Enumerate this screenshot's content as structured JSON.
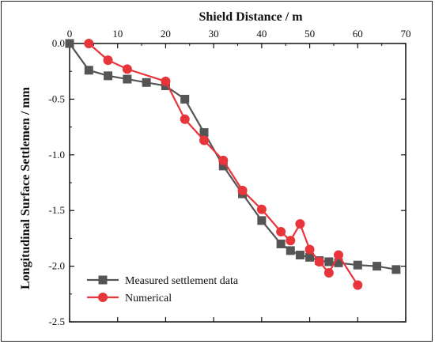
{
  "chart_data": {
    "type": "line",
    "xlabel": "Shield Distance / m",
    "ylabel": "Longitudinal Surface Settlemen / mm",
    "xlim": [
      0,
      70
    ],
    "ylim": [
      -2.5,
      0.0
    ],
    "xticks": [
      "0",
      "10",
      "20",
      "30",
      "40",
      "50",
      "60",
      "70"
    ],
    "xtick_values": [
      0,
      10,
      20,
      30,
      40,
      50,
      60,
      70
    ],
    "yticks": [
      "0.0",
      "-0.5",
      "-1.0",
      "-1.5",
      "-2.0",
      "-2.5"
    ],
    "ytick_values": [
      0.0,
      -0.5,
      -1.0,
      -1.5,
      -2.0,
      -2.5
    ],
    "x_axis_position": "top",
    "grid": false,
    "legend_position": "bottom-left",
    "series": [
      {
        "name": "Measured settlement data",
        "color": "#555555",
        "marker": "square",
        "x": [
          0,
          4,
          8,
          12,
          16,
          20,
          24,
          28,
          32,
          36,
          40,
          44,
          46,
          48,
          50,
          52,
          54,
          56,
          60,
          64,
          68
        ],
        "y": [
          0.0,
          -0.24,
          -0.29,
          -0.32,
          -0.35,
          -0.38,
          -0.5,
          -0.8,
          -1.1,
          -1.35,
          -1.59,
          -1.8,
          -1.86,
          -1.9,
          -1.92,
          -1.95,
          -1.96,
          -1.97,
          -1.99,
          -2.0,
          -2.03
        ]
      },
      {
        "name": "Numerical",
        "color": "#e8353b",
        "marker": "circle",
        "x": [
          4,
          8,
          12,
          20,
          24,
          28,
          32,
          36,
          40,
          44,
          46,
          48,
          50,
          52,
          54,
          56,
          60
        ],
        "y": [
          0.0,
          -0.15,
          -0.23,
          -0.34,
          -0.68,
          -0.87,
          -1.05,
          -1.32,
          -1.49,
          -1.69,
          -1.77,
          -1.62,
          -1.85,
          -1.96,
          -2.06,
          -1.9,
          -2.17
        ]
      }
    ]
  }
}
